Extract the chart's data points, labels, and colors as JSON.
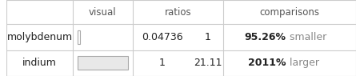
{
  "headers": [
    "",
    "visual",
    "ratios",
    "",
    "comparisons"
  ],
  "rows": [
    {
      "label": "molybdenum",
      "bar_width": 0.04736,
      "bar_color": "#ffffff",
      "bar_border": "#aaaaaa",
      "ratio1": "0.04736",
      "ratio2": "1",
      "pct_bold": "95.26%",
      "pct_text": " smaller",
      "pct_color": "#888888"
    },
    {
      "label": "indium",
      "bar_width": 1.0,
      "bar_color": "#e8e8e8",
      "bar_border": "#aaaaaa",
      "ratio1": "1",
      "ratio2": "21.11",
      "pct_bold": "2011%",
      "pct_text": " larger",
      "pct_color": "#888888"
    }
  ],
  "header_color": "#555555",
  "label_color": "#222222",
  "bg_color": "#ffffff",
  "grid_color": "#cccccc",
  "header_fontsize": 8.5,
  "cell_fontsize": 9.0,
  "bold_fontsize": 9.0
}
